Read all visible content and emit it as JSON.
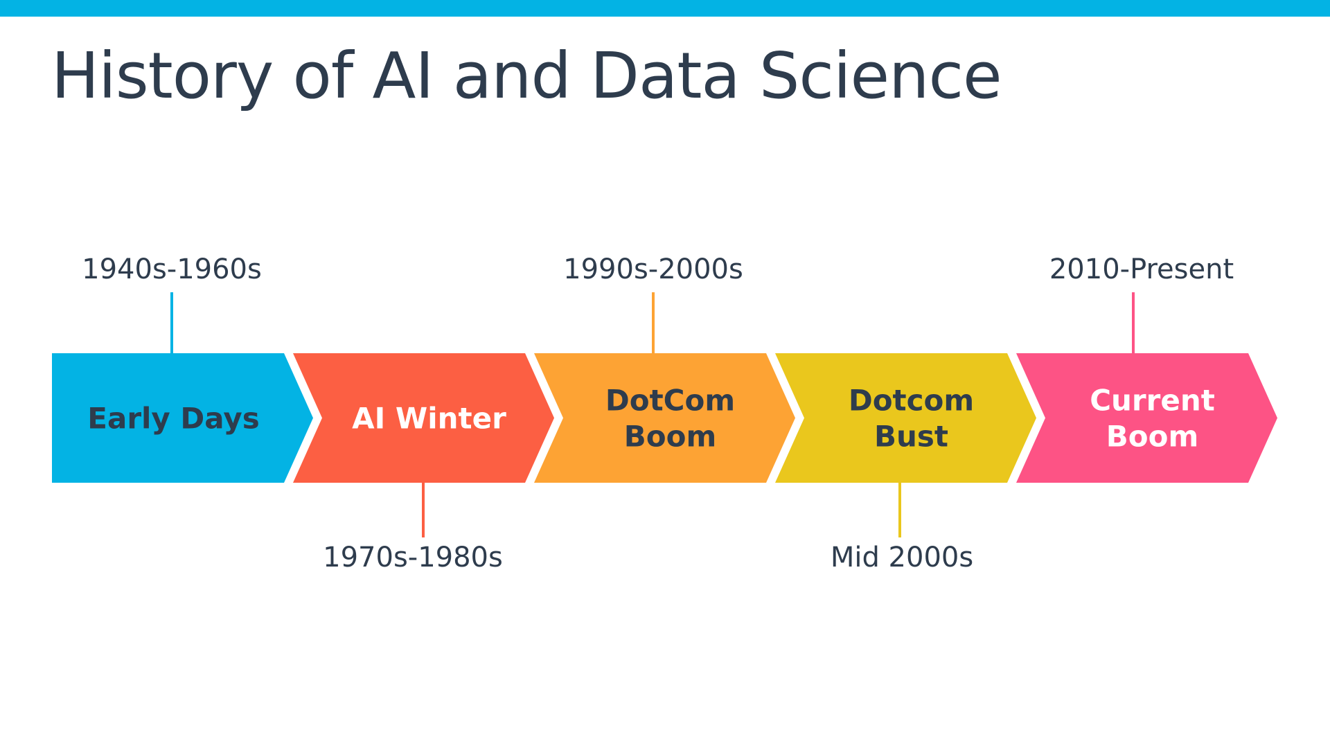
{
  "title": "History of AI and Data Science",
  "colors": {
    "top_bar": "#03b3e4",
    "title_text": "#2e3c4d"
  },
  "timeline": [
    {
      "name": "early-days",
      "label_lines": [
        "Early Days"
      ],
      "date": "1940s-1960s",
      "date_position": "above",
      "fill": "#03b3e4",
      "text_color": "#2e3c4d",
      "connector_color": "#03b3e4"
    },
    {
      "name": "ai-winter",
      "label_lines": [
        "AI Winter"
      ],
      "date": "1970s-1980s",
      "date_position": "below",
      "fill": "#fc5f43",
      "text_color": "#ffffff",
      "connector_color": "#fc5f43"
    },
    {
      "name": "dotcom-boom",
      "label_lines": [
        "DotCom",
        "Boom"
      ],
      "date": "1990s-2000s",
      "date_position": "above",
      "fill": "#fda334",
      "text_color": "#2e3c4d",
      "connector_color": "#fda334"
    },
    {
      "name": "dotcom-bust",
      "label_lines": [
        "Dotcom",
        "Bust"
      ],
      "date": "Mid 2000s",
      "date_position": "below",
      "fill": "#eac71d",
      "text_color": "#2e3c4d",
      "connector_color": "#eac71d"
    },
    {
      "name": "current-boom",
      "label_lines": [
        "Current",
        "Boom"
      ],
      "date": "2010-Present",
      "date_position": "above",
      "fill": "#fd5385",
      "text_color": "#ffffff",
      "connector_color": "#fd5385"
    }
  ]
}
